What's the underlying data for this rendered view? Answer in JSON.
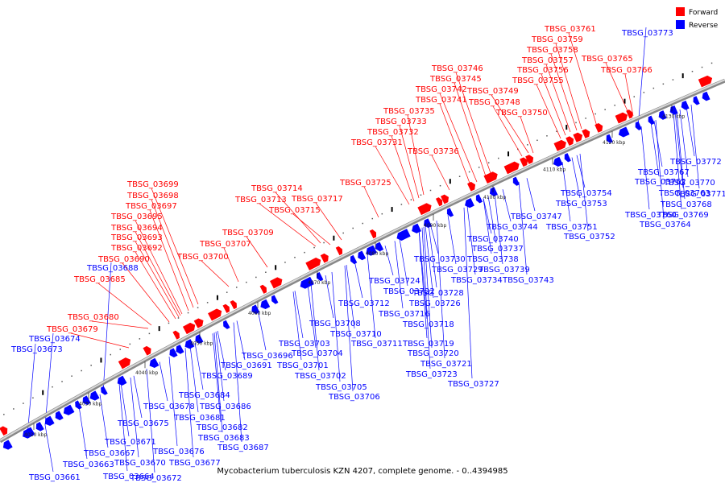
{
  "caption": "Mycobacterium tuberculosis KZN 4207, complete genome. - 0..4394985",
  "legend": {
    "forward": {
      "label": "Forward",
      "color": "#ff0000"
    },
    "reverse": {
      "label": "Reverse",
      "color": "#0000ff"
    }
  },
  "kbp_marks": [
    "4020 kbp",
    "4030 kbp",
    "4040 kbp",
    "4050 kbp",
    "4060 kbp",
    "4070 kbp",
    "4080 kbp",
    "4090 kbp",
    "4100 kbp",
    "4110 kbp",
    "4120 kbp",
    "4130 kbp"
  ],
  "forward_labels": [
    "TBSG_03761",
    "TBSG_03759",
    "TBSG_03758",
    "TBSG_03757",
    "TBSG_03765",
    "TBSG_03756",
    "TBSG_03746",
    "TBSG_03766",
    "TBSG_03745",
    "TBSG_03755",
    "TBSG_03742",
    "TBSG_03749",
    "TBSG_03741",
    "TBSG_03748",
    "TBSG_03735",
    "TBSG_03750",
    "TBSG_03733",
    "TBSG_03732",
    "TBSG_03731",
    "TBSG_03736",
    "TBSG_03725",
    "TBSG_03699",
    "TBSG_03714",
    "TBSG_03698",
    "TBSG_03713",
    "TBSG_03717",
    "TBSG_03697",
    "TBSG_03715",
    "TBSG_03695",
    "TBSG_03694",
    "TBSG_03709",
    "TBSG_03693",
    "TBSG_03707",
    "TBSG_03692",
    "TBSG_03700",
    "TBSG_03690",
    "TBSG_03685",
    "TBSG_03680",
    "TBSG_03679"
  ],
  "reverse_labels": [
    "TBSG_03773",
    "TBSG_03772",
    "TBSG_03767",
    "TBSG_03770",
    "TBSG_03762",
    "TBSG_03763",
    "TBSG_03771",
    "TBSG_03754",
    "TBSG_03768",
    "TBSG_03753",
    "TBSG_03760",
    "TBSG_03769",
    "TBSG_03764",
    "TBSG_03747",
    "TBSG_03744",
    "TBSG_03751",
    "TBSG_03752",
    "TBSG_03740",
    "TBSG_03737",
    "TBSG_03730",
    "TBSG_03738",
    "TBSG_03729",
    "TBSG_03739",
    "TBSG_03734",
    "TBSG_03743",
    "TBSG_03688",
    "TBSG_03724",
    "TBSG_03722",
    "TBSG_03728",
    "TBSG_03712",
    "TBSG_03726",
    "TBSG_03716",
    "TBSG_03708",
    "TBSG_03718",
    "TBSG_03710",
    "TBSG_03711",
    "TBSG_03703",
    "TBSG_03719",
    "TBSG_03704",
    "TBSG_03720",
    "TBSG_03674",
    "TBSG_03696",
    "TBSG_03721",
    "TBSG_03673",
    "TBSG_03691",
    "TBSG_03701",
    "TBSG_03723",
    "TBSG_03689",
    "TBSG_03702",
    "TBSG_03727",
    "TBSG_03705",
    "TBSG_03706",
    "TBSG_03684",
    "TBSG_03686",
    "TBSG_03678",
    "TBSG_03681",
    "TBSG_03675",
    "TBSG_03682",
    "TBSG_03683",
    "TBSG_03671",
    "TBSG_03687",
    "TBSG_03676",
    "TBSG_03667",
    "TBSG_03670",
    "TBSG_03677",
    "TBSG_03663",
    "TBSG_03664",
    "TBSG_03661",
    "TBSG_03672"
  ]
}
